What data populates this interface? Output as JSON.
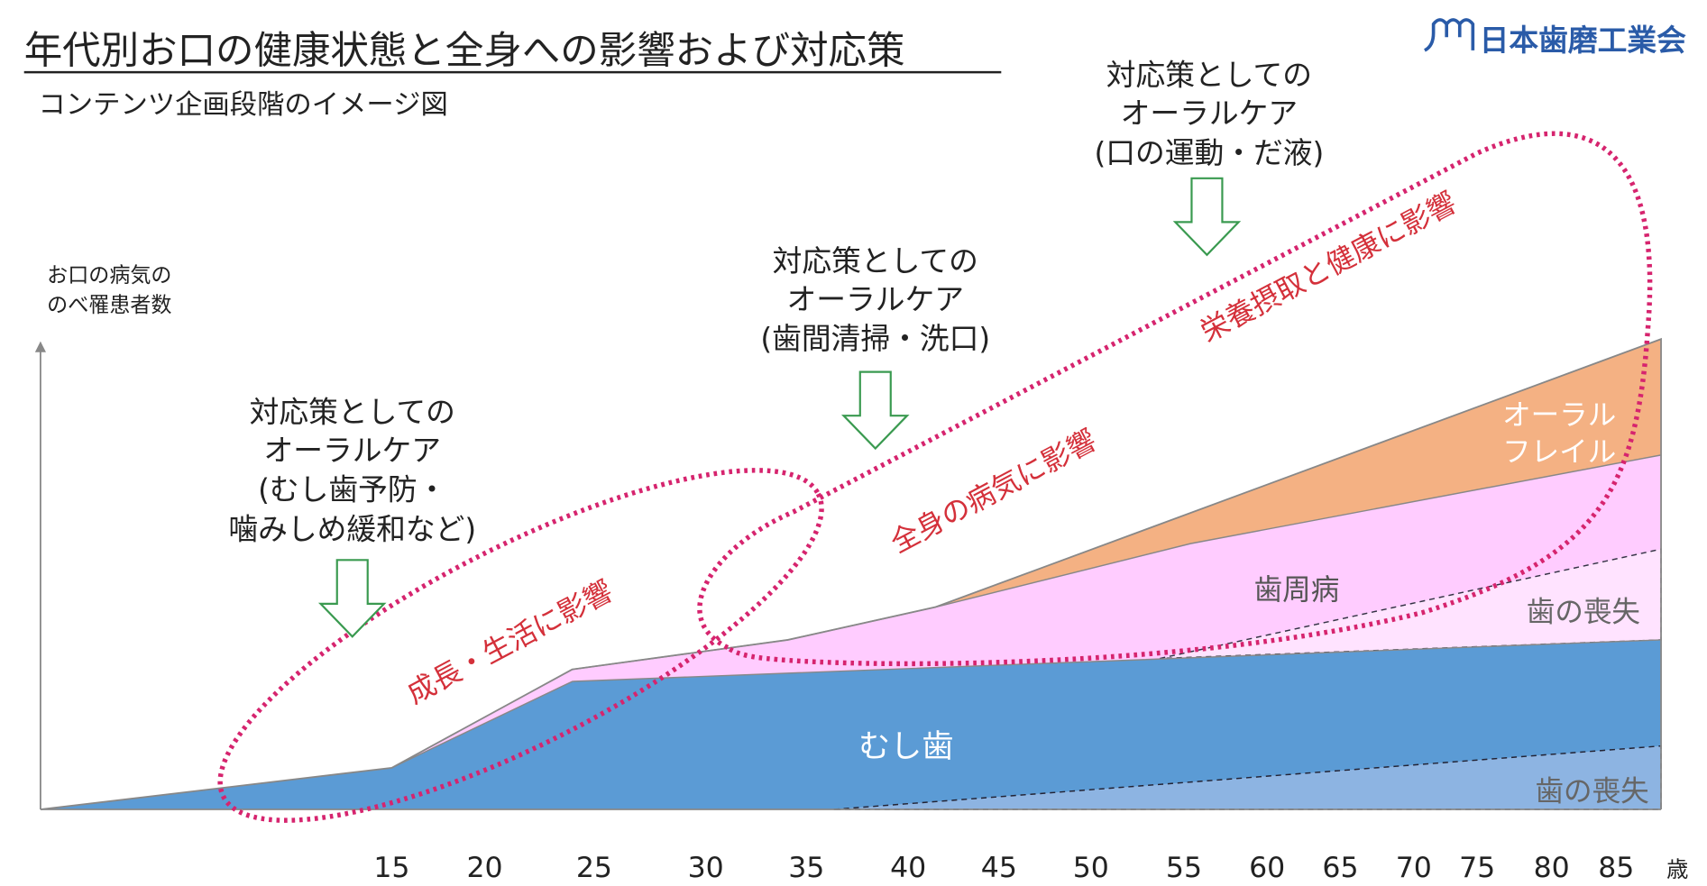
{
  "title": "年代別お口の健康状態と全身への影響および対応策",
  "subtitle": "コンテンツ企画段階のイメージ図",
  "logo": {
    "text": "日本歯磨工業会",
    "color": "#2a5ba8"
  },
  "y_axis_label": [
    "お口の病気の",
    "のべ罹患者数"
  ],
  "x_axis": {
    "ticks": [
      "15",
      "20",
      "25",
      "30",
      "35",
      "40",
      "45",
      "50",
      "55",
      "60",
      "65",
      "70",
      "75",
      "80",
      "85"
    ],
    "unit": "歳"
  },
  "areas": {
    "caries": {
      "label": "むし歯",
      "color": "#5b9bd5"
    },
    "tooth_loss_lower": {
      "label": "歯の喪失",
      "color": "#8db4e2"
    },
    "periodontal": {
      "label": "歯周病",
      "color": "#ffccff"
    },
    "tooth_loss_upper": {
      "label": "歯の喪失",
      "color": "#ffe3ff"
    },
    "oral_frailty": {
      "label": [
        "オーラル",
        "フレイル"
      ],
      "color": "#f4b183"
    }
  },
  "care_blocks": [
    {
      "lines": [
        "対応策としての",
        "オーラルケア",
        "(むし歯予防・",
        "噛みしめ緩和など)"
      ]
    },
    {
      "lines": [
        "対応策としての",
        "オーラルケア",
        "(歯間清掃・洗口)"
      ]
    },
    {
      "lines": [
        "対応策としての",
        "オーラルケア",
        "(口の運動・だ液)"
      ]
    }
  ],
  "impacts": [
    "成長・生活に影響",
    "全身の病気に影響",
    "栄養摂取と健康に影響"
  ],
  "colors": {
    "impact": "#d6246e",
    "arrow": "#3a9a50"
  }
}
